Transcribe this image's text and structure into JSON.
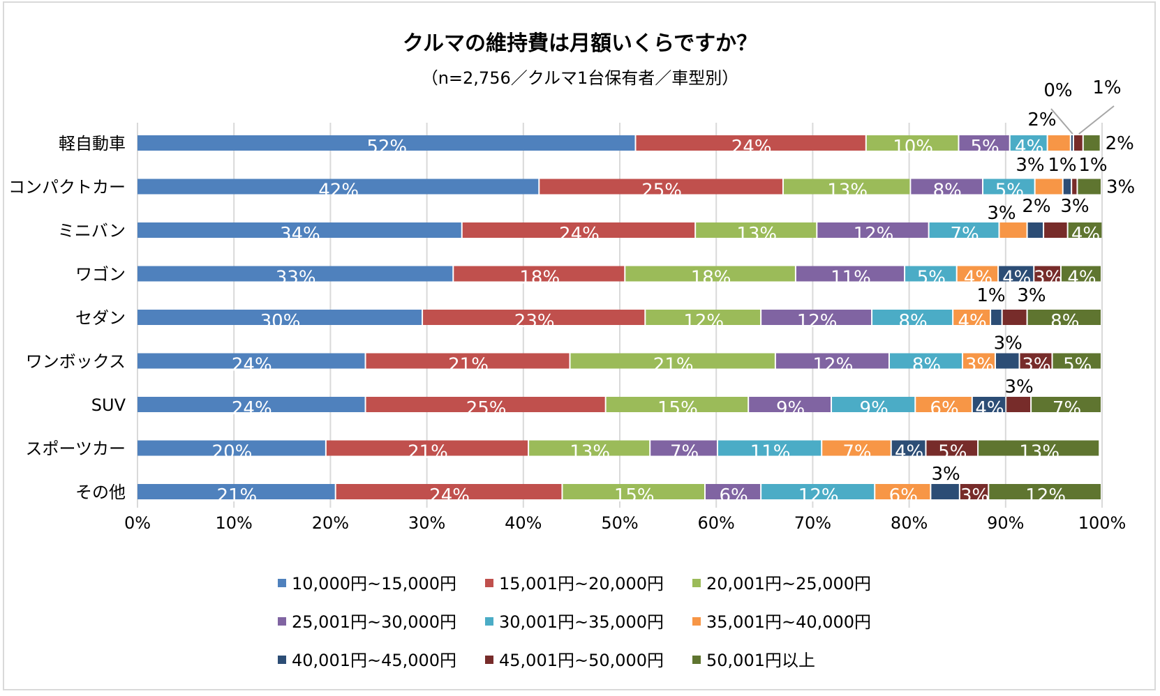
{
  "chart_data": {
    "type": "bar",
    "orientation": "horizontal",
    "stacked": "percent",
    "title": "クルマの維持費は月額いくらですか？",
    "subtitle": "（n=2,756／クルマ1台保有者／車型別）",
    "xlim": [
      0,
      100
    ],
    "x_ticks": [
      "0%",
      "10%",
      "20%",
      "30%",
      "40%",
      "50%",
      "60%",
      "70%",
      "80%",
      "90%",
      "100%"
    ],
    "grid": "vertical",
    "legend_position": "bottom",
    "categories": [
      "軽自動車",
      "コンパクトカー",
      "ミニバン",
      "ワゴン",
      "セダン",
      "ワンボックス",
      "SUV",
      "スポーツカー",
      "その他"
    ],
    "series": [
      {
        "name": "10,000円~15,000円",
        "color": "#4F81BD",
        "values": [
          51.7,
          41.7,
          33.7,
          32.8,
          29.6,
          23.7,
          23.7,
          19.6,
          20.6
        ]
      },
      {
        "name": "15,001円~20,000円",
        "color": "#C0504D",
        "values": [
          23.9,
          25.3,
          24.2,
          17.8,
          23.1,
          21.2,
          24.9,
          21.0,
          23.5
        ]
      },
      {
        "name": "20,001円~25,000円",
        "color": "#9BBB59",
        "values": [
          9.6,
          13.2,
          12.6,
          17.7,
          12.0,
          21.3,
          14.8,
          12.6,
          14.8
        ]
      },
      {
        "name": "25,001円~30,000円",
        "color": "#8064A2",
        "values": [
          5.3,
          7.5,
          11.6,
          11.3,
          11.5,
          11.8,
          8.6,
          7.0,
          5.8
        ]
      },
      {
        "name": "30,001円~35,000円",
        "color": "#4BACC6",
        "values": [
          3.9,
          5.4,
          7.3,
          5.4,
          8.4,
          7.6,
          8.7,
          10.8,
          11.8
        ]
      },
      {
        "name": "35,001円~40,000円",
        "color": "#F79646",
        "values": [
          2.4,
          2.9,
          2.9,
          4.3,
          3.9,
          3.4,
          5.9,
          7.2,
          5.8
        ]
      },
      {
        "name": "40,001円~45,000円",
        "color": "#2C4D75",
        "values": [
          0.3,
          0.9,
          1.7,
          3.7,
          1.2,
          2.5,
          3.5,
          3.6,
          3.0
        ]
      },
      {
        "name": "45,001円~50,000円",
        "color": "#772C2A",
        "values": [
          1.0,
          0.6,
          2.5,
          2.8,
          2.6,
          3.4,
          2.6,
          5.4,
          3.0
        ]
      },
      {
        "name": "50,001円以上",
        "color": "#5F7530",
        "values": [
          1.8,
          2.5,
          3.6,
          4.2,
          7.7,
          5.1,
          7.3,
          12.6,
          11.7
        ]
      }
    ]
  }
}
